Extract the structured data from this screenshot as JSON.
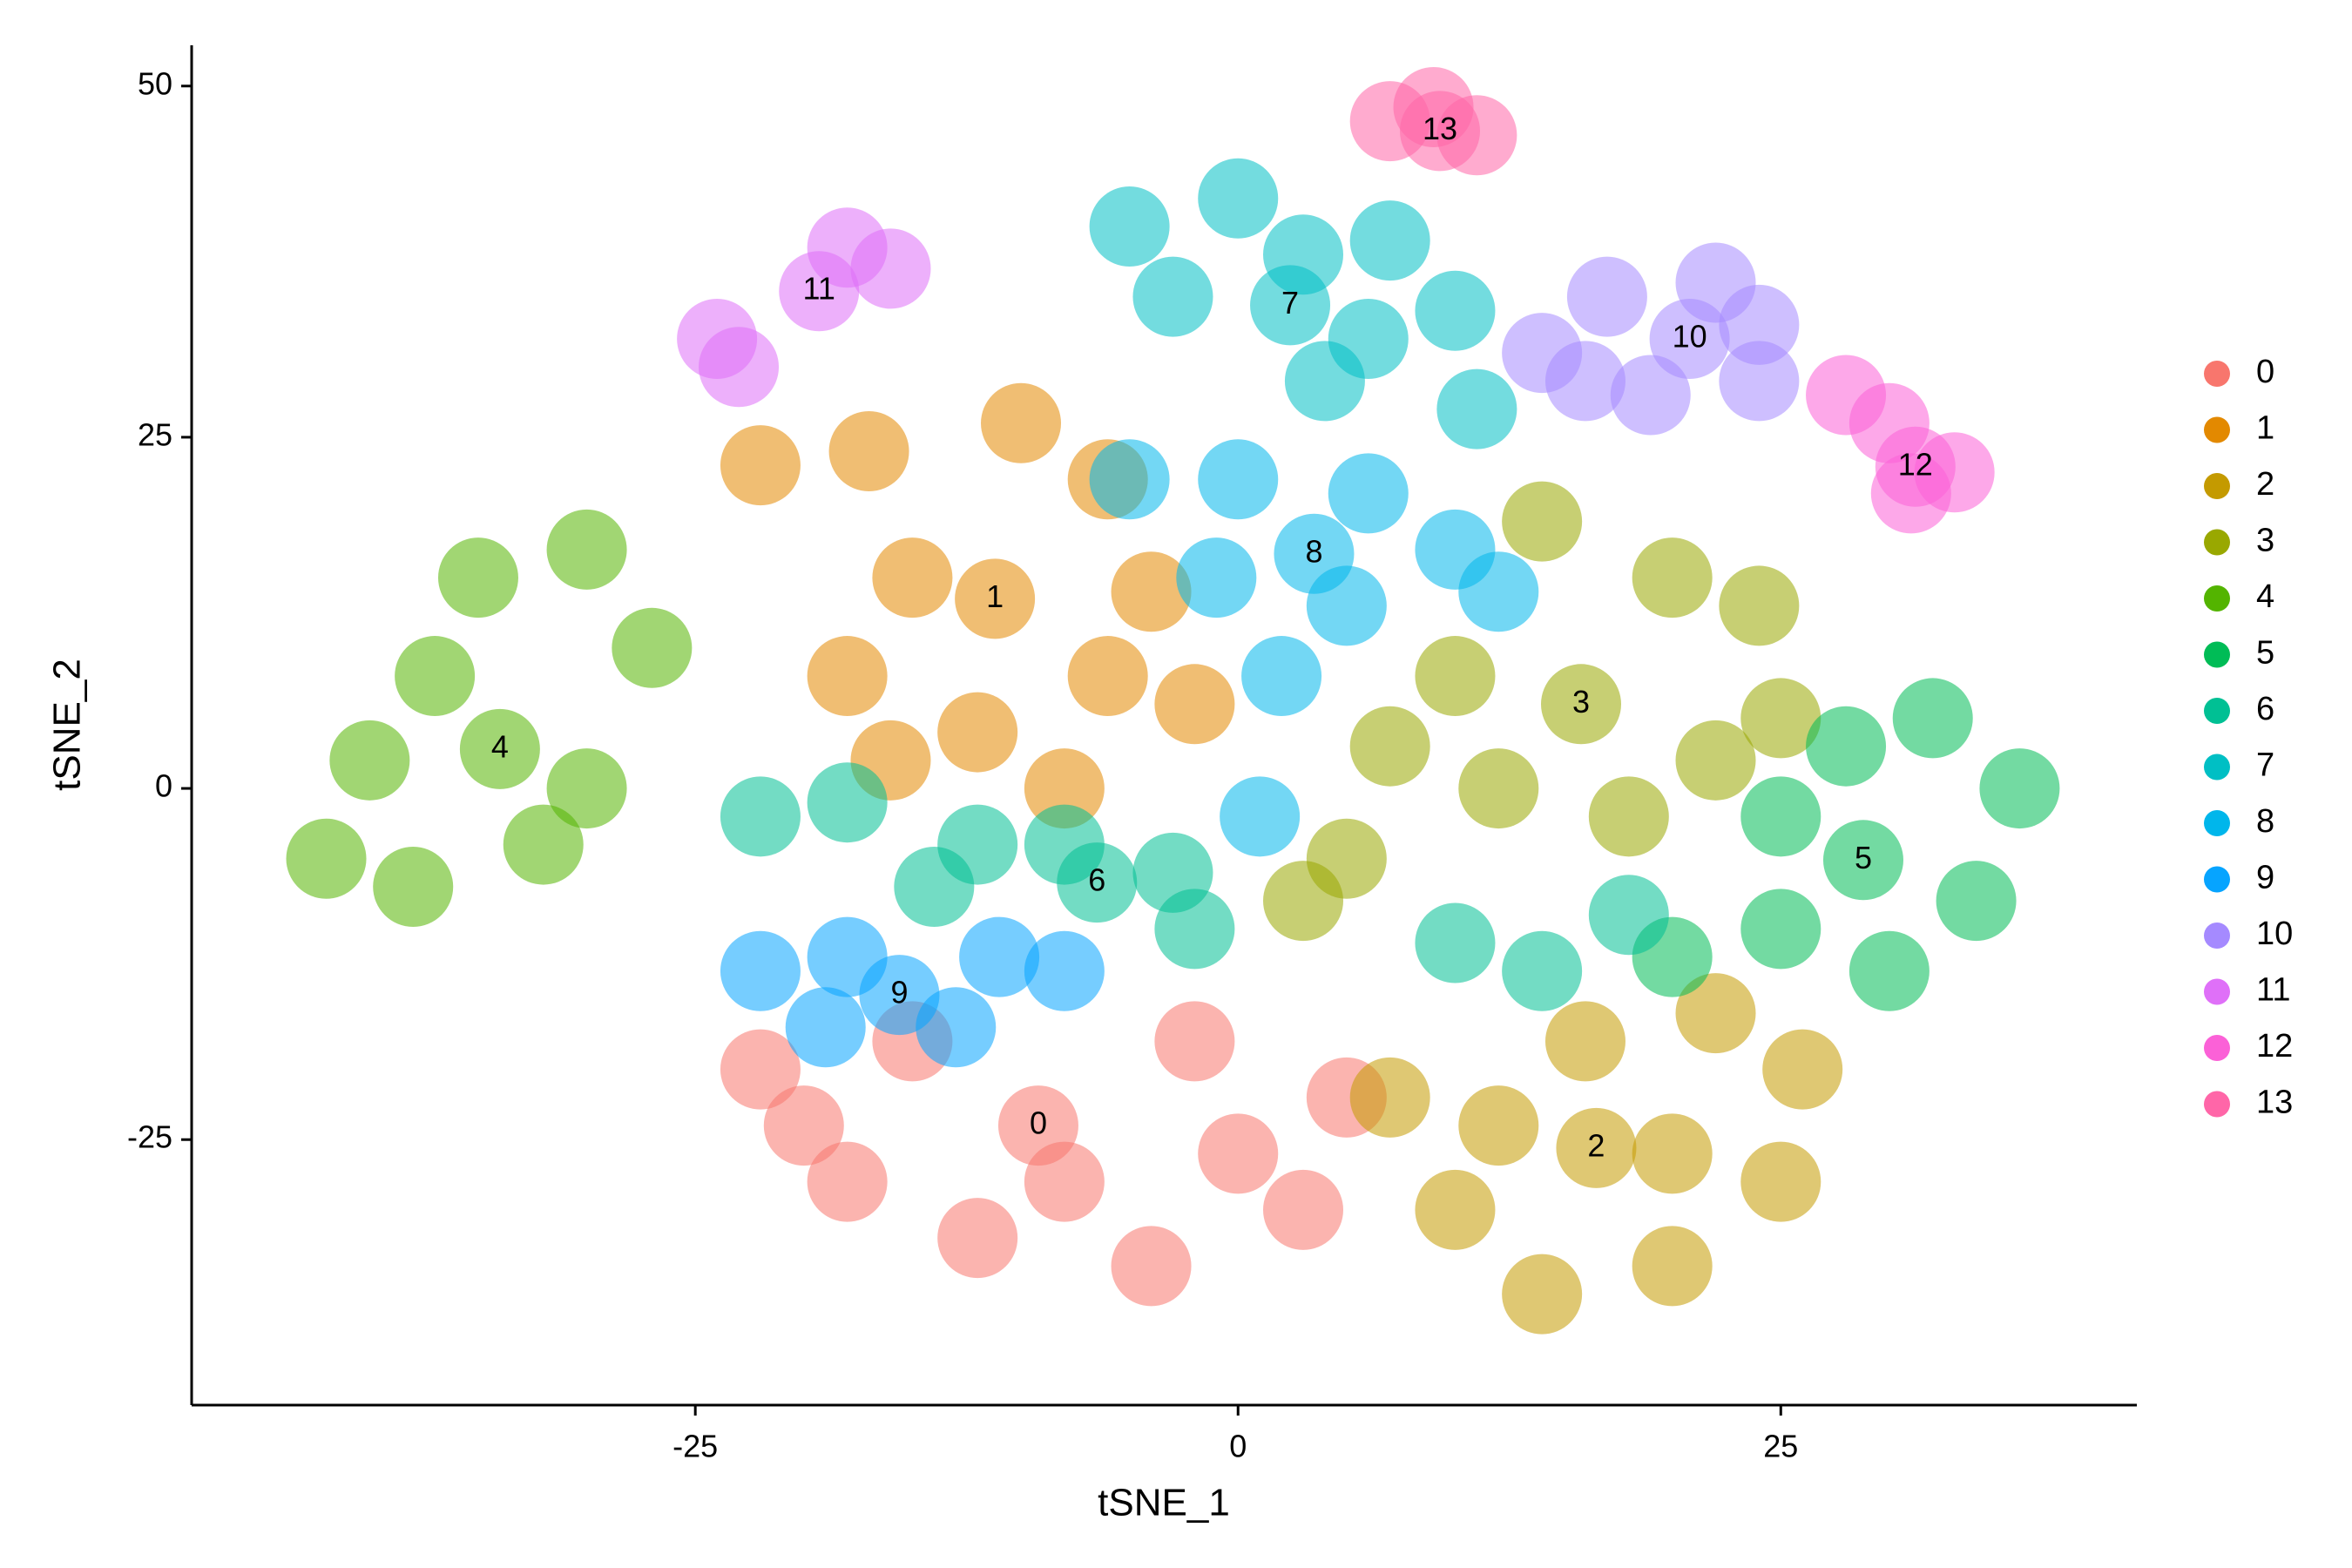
{
  "chart_data": {
    "type": "scatter",
    "x_label": "tSNE_1",
    "y_label": "tSNE_2",
    "xlim": [
      -48.2,
      41.4
    ],
    "ylim": [
      -43.9,
      52.9
    ],
    "xticks": [
      -25,
      0,
      25
    ],
    "yticks": [
      -25,
      0,
      25,
      50
    ],
    "legend": "right",
    "series": [
      {
        "name": "0",
        "color": "#F8766D",
        "center": [
          -9.2,
          -24
        ],
        "x": [
          -22,
          -18,
          -12,
          -4,
          3,
          5,
          -2,
          -15,
          -8,
          -20,
          0
        ],
        "y": [
          -20,
          -28,
          -32,
          -34,
          -30,
          -22,
          -18,
          -18,
          -28,
          -24,
          -26
        ]
      },
      {
        "name": "1",
        "color": "#E38900",
        "center": [
          -11.2,
          13.5
        ],
        "x": [
          -22,
          -17,
          -10,
          -6,
          -15,
          -18,
          -12,
          -6,
          -2,
          -4,
          -16,
          -8
        ],
        "y": [
          23,
          24,
          26,
          22,
          15,
          8,
          4,
          8,
          6,
          14,
          2,
          0
        ]
      },
      {
        "name": "2",
        "color": "#C49A00",
        "center": [
          16.5,
          -25.6
        ],
        "x": [
          7,
          10,
          14,
          20,
          25,
          26,
          22,
          16,
          12,
          20
        ],
        "y": [
          -22,
          -30,
          -36,
          -34,
          -28,
          -20,
          -16,
          -18,
          -24,
          -26
        ]
      },
      {
        "name": "3",
        "color": "#99A800",
        "center": [
          15.8,
          6
        ],
        "x": [
          14,
          20,
          24,
          25,
          22,
          10,
          7,
          12,
          18,
          5,
          3
        ],
        "y": [
          19,
          15,
          13,
          5,
          2,
          8,
          3,
          0,
          -2,
          -5,
          -8
        ]
      },
      {
        "name": "4",
        "color": "#53B400",
        "center": [
          -34,
          2.8
        ],
        "x": [
          -35,
          -30,
          -27,
          -30,
          -32,
          -38,
          -42,
          -40,
          -37
        ],
        "y": [
          15,
          17,
          10,
          0,
          -4,
          -7,
          -5,
          2,
          8
        ]
      },
      {
        "name": "5",
        "color": "#00BC56",
        "center": [
          28.8,
          -5.1
        ],
        "x": [
          32,
          36,
          34,
          30,
          25,
          25,
          28,
          20
        ],
        "y": [
          5,
          0,
          -8,
          -13,
          -10,
          -2,
          3,
          -12
        ]
      },
      {
        "name": "6",
        "color": "#00C094",
        "center": [
          -6.5,
          -6.7
        ],
        "x": [
          -22,
          -18,
          -12,
          -14,
          -8,
          -3,
          10,
          14,
          18,
          -2
        ],
        "y": [
          -2,
          -1,
          -4,
          -7,
          -4,
          -6,
          -11,
          -13,
          -9,
          -10
        ]
      },
      {
        "name": "7",
        "color": "#00BFC4",
        "center": [
          2.4,
          34.4
        ],
        "x": [
          -5,
          0,
          3,
          -3,
          7,
          10,
          11,
          4,
          6
        ],
        "y": [
          40,
          42,
          38,
          35,
          39,
          34,
          27,
          29,
          32
        ]
      },
      {
        "name": "8",
        "color": "#00B6EB",
        "center": [
          3.5,
          16.7
        ],
        "x": [
          -5,
          0,
          6,
          10,
          12,
          5,
          -1,
          2,
          1
        ],
        "y": [
          22,
          22,
          21,
          17,
          14,
          13,
          15,
          8,
          -2
        ]
      },
      {
        "name": "9",
        "color": "#06A4FF",
        "center": [
          -15.6,
          -14.7
        ],
        "x": [
          -22,
          -18,
          -11,
          -8,
          -13,
          -19
        ],
        "y": [
          -13,
          -12,
          -12,
          -13,
          -17,
          -17
        ]
      },
      {
        "name": "10",
        "color": "#A58AFF",
        "center": [
          20.8,
          32
        ],
        "x": [
          17,
          22,
          24,
          24,
          19,
          16,
          14
        ],
        "y": [
          35,
          36,
          33,
          29,
          28,
          29,
          31
        ]
      },
      {
        "name": "11",
        "color": "#DF70F8",
        "center": [
          -19.3,
          35.4
        ],
        "x": [
          -18,
          -16,
          -24,
          -23
        ],
        "y": [
          38.5,
          37,
          32,
          30
        ]
      },
      {
        "name": "12",
        "color": "#FB61D7",
        "center": [
          31.2,
          22.9
        ],
        "x": [
          28,
          30,
          33,
          31
        ],
        "y": [
          28,
          26,
          22.5,
          21
        ]
      },
      {
        "name": "13",
        "color": "#FF66A8",
        "center": [
          9.3,
          46.8
        ],
        "x": [
          7,
          11,
          9
        ],
        "y": [
          47.5,
          46.5,
          48.5
        ]
      }
    ]
  }
}
